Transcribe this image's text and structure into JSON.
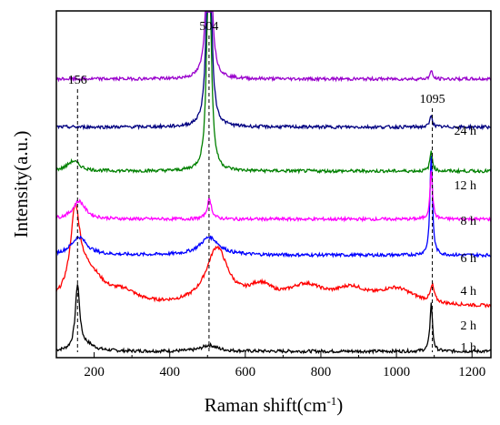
{
  "chart_data": {
    "type": "line",
    "xlabel": "Raman shift(cm",
    "xlabel_sup": "-1",
    "xlabel_end": ")",
    "ylabel": "Intensity(a.u.)",
    "xlim": [
      100,
      1250
    ],
    "x_ticks": [
      200,
      400,
      600,
      800,
      1000,
      1200
    ],
    "annotations": [
      {
        "x": 156,
        "label": "156"
      },
      {
        "x": 504,
        "label": "504"
      },
      {
        "x": 1095,
        "label": "1095"
      }
    ],
    "grid": false,
    "series": [
      {
        "name": "1 h",
        "color": "#000000",
        "offset": 0,
        "peaks": [
          [
            156,
            1.6,
            7
          ],
          [
            180,
            0.15,
            25
          ],
          [
            505,
            0.15,
            25
          ],
          [
            1092,
            1.2,
            4
          ]
        ]
      },
      {
        "name": "2 h",
        "color": "#ff0000",
        "offset": 1.1,
        "peaks": [
          [
            150,
            2.0,
            15
          ],
          [
            185,
            0.8,
            50
          ],
          [
            280,
            0.25,
            40
          ],
          [
            525,
            1.4,
            35
          ],
          [
            640,
            0.4,
            40
          ],
          [
            760,
            0.45,
            60
          ],
          [
            880,
            0.35,
            50
          ],
          [
            1000,
            0.4,
            60
          ],
          [
            1095,
            0.4,
            6
          ]
        ]
      },
      {
        "name": "4 h",
        "color": "#0000ff",
        "offset": 2.4,
        "peaks": [
          [
            160,
            0.45,
            25
          ],
          [
            505,
            0.45,
            30
          ],
          [
            1092,
            2.5,
            4
          ]
        ]
      },
      {
        "name": "6 h",
        "color": "#ff00ff",
        "offset": 3.3,
        "peaks": [
          [
            160,
            0.45,
            20
          ],
          [
            505,
            0.5,
            7
          ],
          [
            1092,
            1.2,
            4
          ]
        ]
      },
      {
        "name": "8 h",
        "color": "#008000",
        "offset": 4.5,
        "peaks": [
          [
            145,
            0.25,
            20
          ],
          [
            504,
            6.6,
            6
          ],
          [
            1092,
            0.5,
            4
          ]
        ]
      },
      {
        "name": "12 h",
        "color": "#000080",
        "offset": 5.6,
        "peaks": [
          [
            504,
            7.0,
            6
          ],
          [
            1092,
            0.3,
            4
          ]
        ]
      },
      {
        "name": "24 h",
        "color": "#9900cc",
        "offset": 6.8,
        "peaks": [
          [
            504,
            6.5,
            6
          ],
          [
            1092,
            0.2,
            4
          ]
        ]
      }
    ]
  }
}
